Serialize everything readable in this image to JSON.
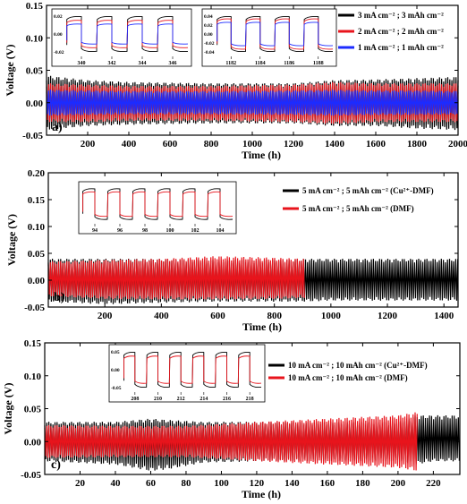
{
  "figure": {
    "panels": [
      {
        "id": "a",
        "label": "a)",
        "xlabel": "Time (h)",
        "ylabel": "Voltage (V)",
        "legend": [
          {
            "text": "3 mA cm⁻² ; 3 mAh cm⁻²",
            "color": "#000000"
          },
          {
            "text": "2 mA cm⁻² ; 2 mAh cm⁻²",
            "color": "#e8141c"
          },
          {
            "text": "1 mA cm⁻² ; 1 mAh cm⁻²",
            "color": "#1c2bff"
          }
        ]
      },
      {
        "id": "b",
        "label": "b)",
        "xlabel": "Time (h)",
        "ylabel": "Voltage (V)",
        "legend": [
          {
            "text": "5 mA cm⁻² ; 5 mAh cm⁻²  (Cu²⁺-DMF)",
            "color": "#000000"
          },
          {
            "text": "5 mA cm⁻² ; 5 mAh cm⁻²  (DMF)",
            "color": "#e8141c"
          }
        ]
      },
      {
        "id": "c",
        "label": "c)",
        "xlabel": "Time (h)",
        "ylabel": "Voltage (V)",
        "legend": [
          {
            "text": "10 mA cm⁻² ; 10 mAh cm⁻² (Cu²⁺-DMF)",
            "color": "#000000"
          },
          {
            "text": "10 mA cm⁻² ; 10 mAh cm⁻² (DMF)",
            "color": "#e8141c"
          }
        ]
      }
    ]
  },
  "chart_data": [
    {
      "type": "line",
      "xlim": [
        0,
        2000
      ],
      "ylim": [
        -0.05,
        0.15
      ],
      "xticks": [
        200,
        400,
        600,
        800,
        1000,
        1200,
        1400,
        1600,
        1800,
        2000
      ],
      "yticks": [
        -0.05,
        0.0,
        0.05,
        0.1,
        0.15
      ],
      "ytick_labels": [
        "-0.05",
        "0.00",
        "0.05",
        "0.10",
        "0.15"
      ],
      "series": [
        {
          "name": "3 mA cm⁻² ; 3 mAh cm⁻²",
          "color": "#000000",
          "x": [
            0,
            200,
            400,
            800,
            1200,
            1400,
            1600,
            1800,
            2000
          ],
          "upper": [
            0.042,
            0.035,
            0.032,
            0.03,
            0.03,
            0.035,
            0.036,
            0.038,
            0.04
          ],
          "lower": [
            -0.042,
            -0.036,
            -0.034,
            -0.032,
            -0.032,
            -0.036,
            -0.036,
            -0.04,
            -0.042
          ]
        },
        {
          "name": "2 mA cm⁻² ; 2 mAh cm⁻²",
          "color": "#e8141c",
          "x": [
            0,
            200,
            400,
            800,
            1200,
            1400,
            1600,
            1800,
            2000
          ],
          "upper": [
            0.03,
            0.028,
            0.026,
            0.026,
            0.028,
            0.032,
            0.03,
            0.03,
            0.03
          ],
          "lower": [
            -0.03,
            -0.03,
            -0.028,
            -0.028,
            -0.03,
            -0.033,
            -0.03,
            -0.03,
            -0.03
          ]
        },
        {
          "name": "1 mA cm⁻² ; 1 mAh cm⁻²",
          "color": "#1c2bff",
          "x": [
            0,
            200,
            400,
            800,
            1200,
            1400,
            1600,
            1800,
            2000
          ],
          "upper": [
            0.02,
            0.019,
            0.018,
            0.018,
            0.019,
            0.02,
            0.019,
            0.019,
            0.018
          ],
          "lower": [
            -0.02,
            -0.019,
            -0.018,
            -0.018,
            -0.019,
            -0.02,
            -0.019,
            -0.019,
            -0.018
          ]
        }
      ],
      "insets": [
        {
          "xticks": [
            "340",
            "342",
            "344",
            "346"
          ],
          "yticks": [
            "0.02",
            "0.00",
            "-0.02"
          ],
          "series": [
            {
              "color": "#000000",
              "amp": 0.028
            },
            {
              "color": "#e8141c",
              "amp": 0.022
            },
            {
              "color": "#1c2bff",
              "amp": 0.016
            }
          ]
        },
        {
          "xticks": [
            "1182",
            "1184",
            "1186",
            "1188"
          ],
          "yticks": [
            "0.04",
            "0.02",
            "0.00",
            "-0.02",
            "-0.04"
          ],
          "series": [
            {
              "color": "#000000",
              "amp": 0.03
            },
            {
              "color": "#e8141c",
              "amp": 0.026
            },
            {
              "color": "#1c2bff",
              "amp": 0.02
            }
          ]
        }
      ]
    },
    {
      "type": "line",
      "xlim": [
        0,
        1450
      ],
      "ylim": [
        -0.05,
        0.2
      ],
      "xticks": [
        200,
        400,
        600,
        800,
        1000,
        1200,
        1400
      ],
      "yticks": [
        -0.05,
        0.0,
        0.05,
        0.1,
        0.15,
        0.2
      ],
      "ytick_labels": [
        "-0.05",
        "0.00",
        "0.05",
        "0.10",
        "0.15",
        "0.20"
      ],
      "series": [
        {
          "name": "5 mA cm⁻² ; 5 mAh cm⁻²  (Cu²⁺-DMF)",
          "color": "#000000",
          "x": [
            0,
            200,
            400,
            600,
            800,
            900,
            1000,
            1200,
            1450
          ],
          "upper": [
            0.04,
            0.04,
            0.04,
            0.038,
            0.038,
            0.04,
            0.04,
            0.04,
            0.04
          ],
          "lower": [
            -0.04,
            -0.045,
            -0.042,
            -0.04,
            -0.04,
            -0.04,
            -0.038,
            -0.038,
            -0.038
          ]
        },
        {
          "name": "5 mA cm⁻² ; 5 mAh cm⁻²  (DMF)",
          "color": "#e8141c",
          "x": [
            0,
            200,
            400,
            600,
            800,
            910
          ],
          "upper": [
            0.035,
            0.038,
            0.04,
            0.045,
            0.042,
            0.04
          ],
          "lower": [
            -0.03,
            -0.035,
            -0.036,
            -0.036,
            -0.035,
            -0.033
          ]
        }
      ],
      "insets": [
        {
          "xticks": [
            "94",
            "96",
            "98",
            "100",
            "102",
            "104"
          ],
          "yticks": [],
          "series": [
            {
              "color": "#000000",
              "amp": 0.03
            },
            {
              "color": "#e8141c",
              "amp": 0.024
            }
          ]
        }
      ]
    },
    {
      "type": "line",
      "xlim": [
        0,
        235
      ],
      "ylim": [
        -0.05,
        0.15
      ],
      "xticks": [
        20,
        40,
        60,
        80,
        100,
        120,
        140,
        160,
        180,
        200,
        220
      ],
      "yticks": [
        -0.05,
        0.0,
        0.05,
        0.1,
        0.15
      ],
      "ytick_labels": [
        "-0.05",
        "0.00",
        "0.05",
        "0.10",
        "0.15"
      ],
      "series": [
        {
          "name": "10 mA cm⁻² ; 10 mAh cm⁻² (Cu²⁺-DMF)",
          "color": "#000000",
          "x": [
            0,
            40,
            60,
            70,
            90,
            120,
            160,
            200,
            210,
            220,
            235
          ],
          "upper": [
            0.03,
            0.03,
            0.035,
            0.033,
            0.03,
            0.03,
            0.03,
            0.03,
            0.04,
            0.04,
            0.04
          ],
          "lower": [
            -0.03,
            -0.035,
            -0.045,
            -0.042,
            -0.032,
            -0.03,
            -0.03,
            -0.03,
            -0.035,
            -0.03,
            -0.03
          ]
        },
        {
          "name": "10 mA cm⁻² ; 10 mAh cm⁻² (DMF)",
          "color": "#e8141c",
          "x": [
            0,
            40,
            80,
            120,
            160,
            200,
            211
          ],
          "upper": [
            0.025,
            0.024,
            0.024,
            0.03,
            0.035,
            0.04,
            0.045
          ],
          "lower": [
            -0.025,
            -0.024,
            -0.024,
            -0.03,
            -0.035,
            -0.04,
            -0.045
          ]
        }
      ],
      "insets": [
        {
          "xticks": [
            "208",
            "210",
            "212",
            "214",
            "216",
            "218"
          ],
          "yticks": [
            "0.05",
            "0.00",
            "-0.05"
          ],
          "series": [
            {
              "color": "#000000",
              "amp": 0.045
            },
            {
              "color": "#e8141c",
              "amp": 0.035
            }
          ]
        }
      ]
    }
  ]
}
